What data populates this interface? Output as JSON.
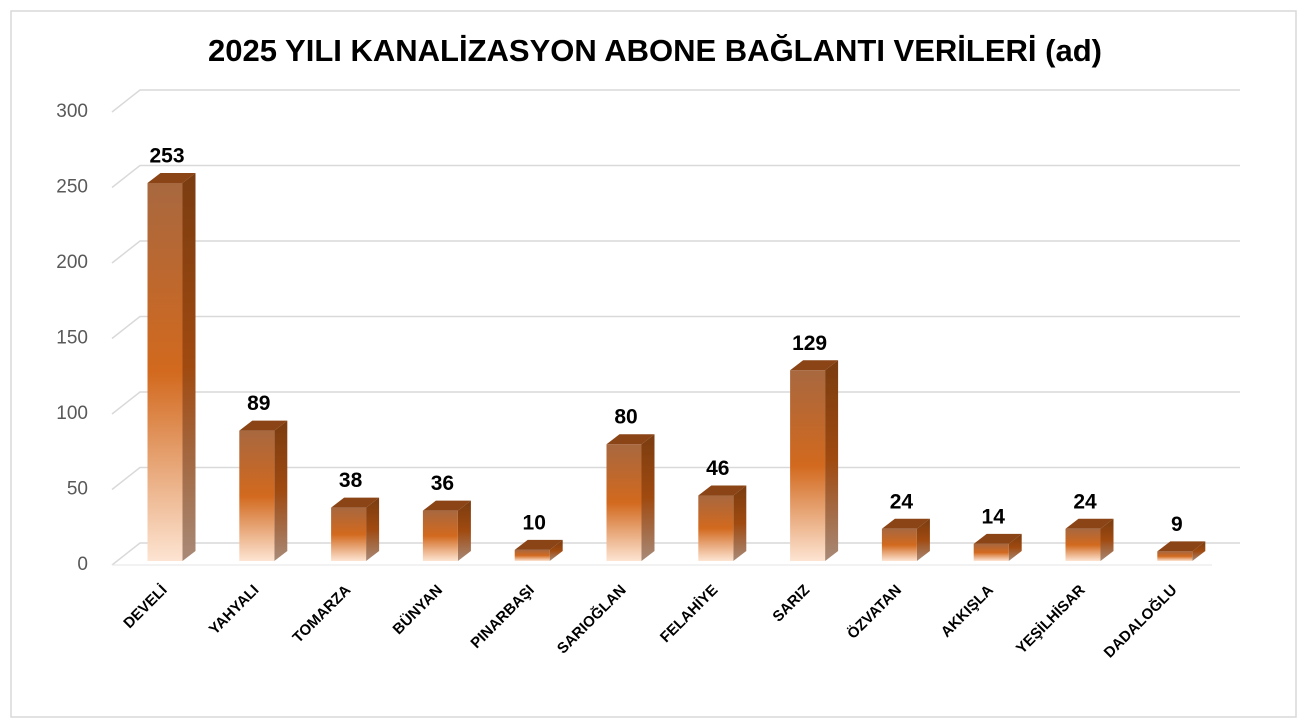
{
  "chart_data": {
    "type": "bar3d",
    "title": "2025 YILI KANALİZASYON ABONE BAĞLANTI VERİLERİ (ad)",
    "categories": [
      "DEVELİ",
      "YAHYALI",
      "TOMARZA",
      "BÜNYAN",
      "PINARBAŞI",
      "SARIOĞLAN",
      "FELAHİYE",
      "SARIZ",
      "ÖZVATAN",
      "AKKIŞLA",
      "YEŞİLHİSAR",
      "DADALOĞLU"
    ],
    "values": [
      253,
      89,
      38,
      36,
      10,
      80,
      46,
      129,
      24,
      14,
      24,
      9
    ],
    "color": "#c0601a",
    "ylim": [
      0,
      300
    ],
    "yticks": [
      0,
      50,
      100,
      150,
      200,
      250,
      300
    ],
    "grid": true
  }
}
